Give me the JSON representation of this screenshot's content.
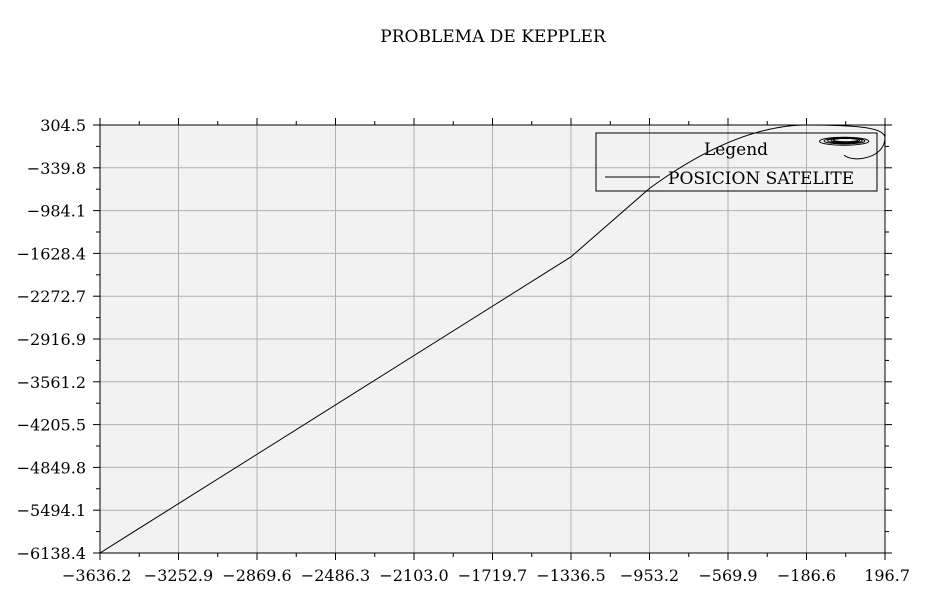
{
  "chart_data": {
    "type": "line",
    "title": "PROBLEMA DE KEPPLER",
    "xlabel": "",
    "ylabel": "",
    "xlim": [
      -3636.2,
      196.7
    ],
    "ylim": [
      -6138.4,
      304.5
    ],
    "x_ticks": [
      "-3636.2",
      "-3252.9",
      "-2869.6",
      "-2486.3",
      "-2103.0",
      "-1719.7",
      "-1336.5",
      "-953.2",
      "-569.9",
      "-186.6",
      "196.7"
    ],
    "y_ticks": [
      "304.5",
      "-339.8",
      "-984.1",
      "-1628.4",
      "-2272.7",
      "-2916.9",
      "-3561.2",
      "-4205.5",
      "-4849.8",
      "-5494.1",
      "-6138.4"
    ],
    "grid": true,
    "legend": {
      "title": "Legend",
      "placement": "top-right",
      "entries": [
        "POSICION SATELITE"
      ]
    },
    "series": [
      {
        "name": "POSICION SATELITE",
        "color": "#000000",
        "trajectory": {
          "start": [
            -3636.2,
            -6138.4
          ],
          "line_points": [
            [
              -3636.2,
              -6138.4
            ],
            [
              -1336.5,
              -1680
            ],
            [
              -953.2,
              -650
            ]
          ],
          "turn_control": [
            -530,
            300
          ],
          "apex": [
            -186.6,
            304.5
          ],
          "loop_right": [
            196.7,
            110
          ],
          "spiral_center": [
            -3,
            60
          ],
          "spiral_radii": [
            [
              120,
              60
            ],
            [
              100,
              45
            ],
            [
              85,
              38
            ],
            [
              70,
              30
            ],
            [
              60,
              25
            ]
          ]
        }
      }
    ]
  }
}
